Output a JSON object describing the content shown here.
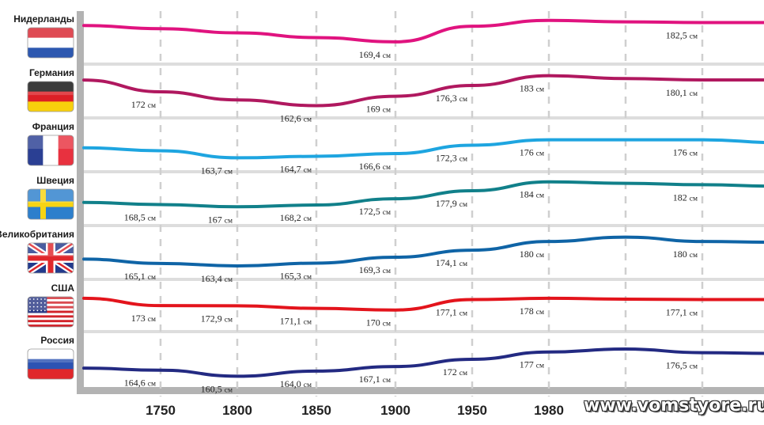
{
  "chart_data": {
    "type": "line",
    "title": "",
    "xlabel": "",
    "ylabel": "",
    "unit": "см",
    "x_ticks": [
      "1750",
      "1800",
      "1850",
      "1900",
      "1950",
      "1980"
    ],
    "x_ticks_hidden_by_watermark": 2,
    "grid": "vertical-dashed",
    "series": [
      {
        "name": "Нидерланды",
        "flag": "netherlands-flag",
        "color": "#e0137f",
        "points": [
          [
            1700,
            180.5
          ],
          [
            1750,
            178.3
          ],
          [
            1800,
            175.5
          ],
          [
            1850,
            172.3
          ],
          [
            1900,
            169.4
          ],
          [
            1950,
            180
          ],
          [
            1980,
            184
          ],
          [
            2010,
            183
          ],
          [
            2050,
            182.5
          ],
          [
            2080,
            182.5
          ]
        ],
        "labels": [
          {
            "x": 1900,
            "text": "169,4"
          },
          {
            "x": 2050,
            "text": "182,5"
          }
        ]
      },
      {
        "name": "Германия",
        "flag": "germany-flag",
        "color": "#b0185f",
        "points": [
          [
            1700,
            180
          ],
          [
            1750,
            172
          ],
          [
            1800,
            166.5
          ],
          [
            1850,
            162.6
          ],
          [
            1900,
            169
          ],
          [
            1950,
            176.3
          ],
          [
            1980,
            183
          ],
          [
            2010,
            181
          ],
          [
            2050,
            180.1
          ],
          [
            2080,
            180.1
          ]
        ],
        "labels": [
          {
            "x": 1750,
            "text": "172"
          },
          {
            "x": 1850,
            "text": "162,6"
          },
          {
            "x": 1900,
            "text": "169"
          },
          {
            "x": 1950,
            "text": "176,3"
          },
          {
            "x": 1980,
            "text": "183"
          },
          {
            "x": 2050,
            "text": "180,1"
          }
        ]
      },
      {
        "name": "Франция",
        "flag": "france-flag",
        "color": "#1ea5e0",
        "points": [
          [
            1700,
            170.5
          ],
          [
            1750,
            168.5
          ],
          [
            1800,
            163.7
          ],
          [
            1850,
            164.7
          ],
          [
            1900,
            166.6
          ],
          [
            1950,
            172.3
          ],
          [
            1980,
            176
          ],
          [
            2010,
            176
          ],
          [
            2050,
            176
          ],
          [
            2080,
            174
          ]
        ],
        "labels": [
          {
            "x": 1800,
            "text": "163,7"
          },
          {
            "x": 1850,
            "text": "164,7"
          },
          {
            "x": 1900,
            "text": "166,6"
          },
          {
            "x": 1950,
            "text": "172,3"
          },
          {
            "x": 1980,
            "text": "176"
          },
          {
            "x": 2050,
            "text": "176"
          }
        ]
      },
      {
        "name": "Швеция",
        "flag": "sweden-flag",
        "color": "#11808a",
        "points": [
          [
            1700,
            170
          ],
          [
            1750,
            168.5
          ],
          [
            1800,
            167
          ],
          [
            1850,
            168.2
          ],
          [
            1900,
            172.5
          ],
          [
            1950,
            177.9
          ],
          [
            1980,
            184
          ],
          [
            2010,
            183
          ],
          [
            2050,
            182
          ],
          [
            2080,
            181
          ]
        ],
        "labels": [
          {
            "x": 1750,
            "text": "168,5"
          },
          {
            "x": 1800,
            "text": "167"
          },
          {
            "x": 1850,
            "text": "168,2"
          },
          {
            "x": 1900,
            "text": "172,5"
          },
          {
            "x": 1950,
            "text": "177,9"
          },
          {
            "x": 1980,
            "text": "184"
          },
          {
            "x": 2050,
            "text": "182"
          }
        ]
      },
      {
        "name": "Великобритания",
        "flag": "uk-flag",
        "color": "#0f64a6",
        "points": [
          [
            1700,
            168
          ],
          [
            1750,
            165.1
          ],
          [
            1800,
            163.4
          ],
          [
            1850,
            165.3
          ],
          [
            1900,
            169.3
          ],
          [
            1950,
            174.1
          ],
          [
            1980,
            180
          ],
          [
            2010,
            183
          ],
          [
            2050,
            180
          ],
          [
            2080,
            179.5
          ]
        ],
        "labels": [
          {
            "x": 1750,
            "text": "165,1"
          },
          {
            "x": 1800,
            "text": "163,4"
          },
          {
            "x": 1850,
            "text": "165,3"
          },
          {
            "x": 1900,
            "text": "169,3"
          },
          {
            "x": 1950,
            "text": "174,1"
          },
          {
            "x": 1980,
            "text": "180"
          },
          {
            "x": 2050,
            "text": "180"
          }
        ]
      },
      {
        "name": "США",
        "flag": "usa-flag",
        "color": "#e3141c",
        "points": [
          [
            1700,
            178
          ],
          [
            1750,
            173
          ],
          [
            1800,
            172.9
          ],
          [
            1850,
            171.1
          ],
          [
            1900,
            170
          ],
          [
            1950,
            177.1
          ],
          [
            1980,
            178
          ],
          [
            2010,
            177.4
          ],
          [
            2050,
            177.1
          ],
          [
            2080,
            177.1
          ]
        ],
        "labels": [
          {
            "x": 1750,
            "text": "173"
          },
          {
            "x": 1800,
            "text": "172,9"
          },
          {
            "x": 1850,
            "text": "171,1"
          },
          {
            "x": 1900,
            "text": "170"
          },
          {
            "x": 1950,
            "text": "177,1"
          },
          {
            "x": 1980,
            "text": "178"
          },
          {
            "x": 2050,
            "text": "177,1"
          }
        ]
      },
      {
        "name": "Россия",
        "flag": "russia-flag",
        "color": "#232a82",
        "points": [
          [
            1700,
            166
          ],
          [
            1750,
            164.6
          ],
          [
            1800,
            160.5
          ],
          [
            1850,
            164
          ],
          [
            1900,
            167.1
          ],
          [
            1950,
            172
          ],
          [
            1980,
            177
          ],
          [
            2010,
            179
          ],
          [
            2050,
            176.5
          ],
          [
            2080,
            176
          ]
        ],
        "labels": [
          {
            "x": 1750,
            "text": "164,6"
          },
          {
            "x": 1800,
            "text": "160,5"
          },
          {
            "x": 1850,
            "text": "164,0"
          },
          {
            "x": 1900,
            "text": "167,1"
          },
          {
            "x": 1950,
            "text": "172"
          },
          {
            "x": 1980,
            "text": "177"
          },
          {
            "x": 2050,
            "text": "176,5"
          }
        ]
      }
    ]
  },
  "watermark": "www.vomstyore.ru",
  "colors": {
    "frame": "#b3b3b3",
    "separator": "#dddddd",
    "grid": "#cfcfcf",
    "background": "#ffffff"
  }
}
